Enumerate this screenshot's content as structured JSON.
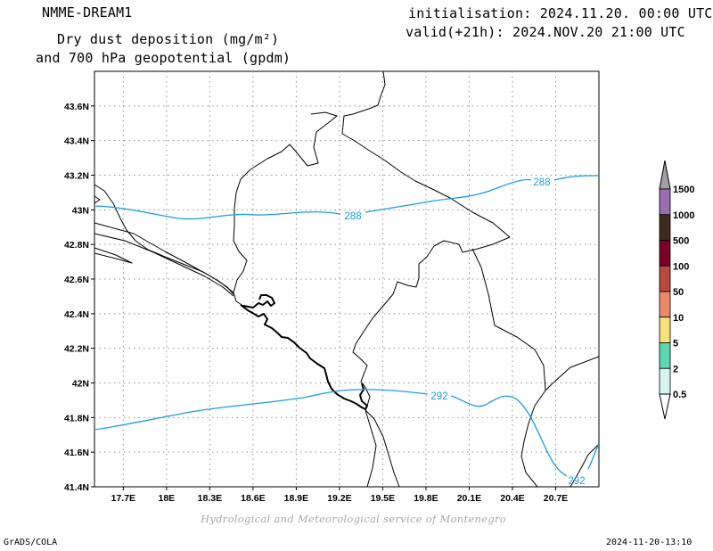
{
  "header": {
    "model": "NMME-DREAM1",
    "product_line1": "Dry dust deposition (mg/m²)",
    "product_line2": "and 700 hPa geopotential (gpdm)",
    "init": "initialisation: 2024.11.20. 00:00 UTC",
    "valid": "valid(+21h): 2024.NOV.20 21:00 UTC"
  },
  "map": {
    "lat_ticks": [
      "43.6N",
      "43.4N",
      "43.2N",
      "43N",
      "42.8N",
      "42.6N",
      "42.4N",
      "42.2N",
      "42N",
      "41.8N",
      "41.6N",
      "41.4N"
    ],
    "lon_ticks": [
      "17.7E",
      "18E",
      "18.3E",
      "18.6E",
      "18.9E",
      "19.2E",
      "19.5E",
      "19.8E",
      "20.1E",
      "20.4E",
      "20.7E"
    ],
    "lon_range": [
      17.5,
      21.0
    ],
    "lat_range": [
      41.4,
      43.8
    ],
    "contour_color": "#1e9be6",
    "contours": [
      {
        "value": 288,
        "labels": [
          "288",
          "288"
        ]
      },
      {
        "value": 292,
        "labels": [
          "292",
          "292"
        ]
      }
    ]
  },
  "colorbar": {
    "labels": [
      "1500",
      "1000",
      "500",
      "100",
      "50",
      "10",
      "5",
      "2",
      "0.5"
    ],
    "colors": [
      "#9a6faf",
      "#3d2b1f",
      "#7a0025",
      "#b84a40",
      "#e8896a",
      "#f5e27a",
      "#5ed6b0",
      "#d6f3ee"
    ],
    "top_arrow_color": "#a0a0a0",
    "bottom_arrow_color": "#ffffff"
  },
  "footer": {
    "credit": "Hydrological and Meteorological service of Montenegro",
    "software": "GrADS/COLA",
    "timestamp": "2024-11-20-13:10"
  }
}
